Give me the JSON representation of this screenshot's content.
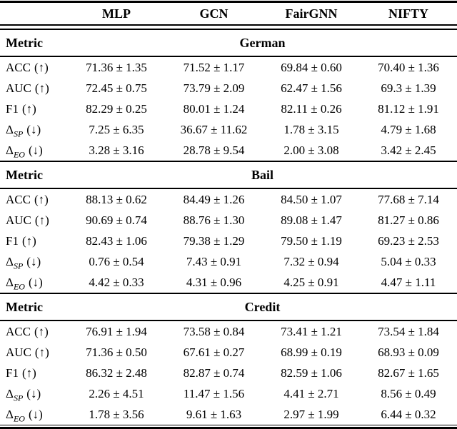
{
  "table": {
    "metric_col_label": "Metric",
    "model_headers": [
      "MLP",
      "GCN",
      "FairGNN",
      "NIFTY"
    ],
    "sections": [
      {
        "dataset": "German",
        "rows": [
          {
            "metric": {
              "name": "ACC",
              "sub": "",
              "dir": "(↑)"
            },
            "values": [
              "71.36 ± 1.35",
              "71.52 ± 1.17",
              "69.84 ± 0.60",
              "70.40 ± 1.36"
            ]
          },
          {
            "metric": {
              "name": "AUC",
              "sub": "",
              "dir": "(↑)"
            },
            "values": [
              "72.45 ± 0.75",
              "73.79 ± 2.09",
              "62.47 ± 1.56",
              "69.3 ± 1.39"
            ]
          },
          {
            "metric": {
              "name": "F1",
              "sub": "",
              "dir": "(↑)"
            },
            "values": [
              "82.29 ± 0.25",
              "80.01 ± 1.24",
              "82.11 ± 0.26",
              "81.12 ± 1.91"
            ]
          },
          {
            "metric": {
              "name": "Δ",
              "sub": "SP",
              "dir": "(↓)"
            },
            "values": [
              "7.25 ± 6.35",
              "36.67 ± 11.62",
              "1.78 ± 3.15",
              "4.79 ± 1.68"
            ]
          },
          {
            "metric": {
              "name": "Δ",
              "sub": "EO",
              "dir": "(↓)"
            },
            "values": [
              "3.28 ± 3.16",
              "28.78 ± 9.54",
              "2.00 ± 3.08",
              "3.42 ± 2.45"
            ]
          }
        ]
      },
      {
        "dataset": "Bail",
        "rows": [
          {
            "metric": {
              "name": "ACC",
              "sub": "",
              "dir": "(↑)"
            },
            "values": [
              "88.13 ± 0.62",
              "84.49 ± 1.26",
              "84.50 ± 1.07",
              "77.68 ± 7.14"
            ]
          },
          {
            "metric": {
              "name": "AUC",
              "sub": "",
              "dir": "(↑)"
            },
            "values": [
              "90.69 ± 0.74",
              "88.76 ± 1.30",
              "89.08 ± 1.47",
              "81.27 ± 0.86"
            ]
          },
          {
            "metric": {
              "name": "F1",
              "sub": "",
              "dir": "(↑)"
            },
            "values": [
              "82.43 ± 1.06",
              "79.38 ± 1.29",
              "79.50 ± 1.19",
              "69.23 ± 2.53"
            ]
          },
          {
            "metric": {
              "name": "Δ",
              "sub": "SP",
              "dir": "(↓)"
            },
            "values": [
              "0.76 ± 0.54",
              "7.43 ± 0.91",
              "7.32 ± 0.94",
              "5.04 ± 0.33"
            ]
          },
          {
            "metric": {
              "name": "Δ",
              "sub": "EO",
              "dir": "(↓)"
            },
            "values": [
              "4.42 ± 0.33",
              "4.31 ± 0.96",
              "4.25 ± 0.91",
              "4.47 ± 1.11"
            ]
          }
        ]
      },
      {
        "dataset": "Credit",
        "rows": [
          {
            "metric": {
              "name": "ACC",
              "sub": "",
              "dir": "(↑)"
            },
            "values": [
              "76.91 ± 1.94",
              "73.58 ± 0.84",
              "73.41 ± 1.21",
              "73.54 ± 1.84"
            ]
          },
          {
            "metric": {
              "name": "AUC",
              "sub": "",
              "dir": "(↑)"
            },
            "values": [
              "71.36 ± 0.50",
              "67.61 ± 0.27",
              "68.99 ± 0.19",
              "68.93 ± 0.09"
            ]
          },
          {
            "metric": {
              "name": "F1",
              "sub": "",
              "dir": "(↑)"
            },
            "values": [
              "86.32 ± 2.48",
              "82.87 ± 0.74",
              "82.59 ± 1.06",
              "82.67 ± 1.65"
            ]
          },
          {
            "metric": {
              "name": "Δ",
              "sub": "SP",
              "dir": "(↓)"
            },
            "values": [
              "2.26 ± 4.51",
              "11.47 ± 1.56",
              "4.41 ± 2.71",
              "8.56 ± 0.49"
            ]
          },
          {
            "metric": {
              "name": "Δ",
              "sub": "EO",
              "dir": "(↓)"
            },
            "values": [
              "1.78 ± 3.56",
              "9.61 ± 1.63",
              "2.97 ± 1.99",
              "6.44 ± 0.32"
            ]
          }
        ]
      }
    ]
  }
}
